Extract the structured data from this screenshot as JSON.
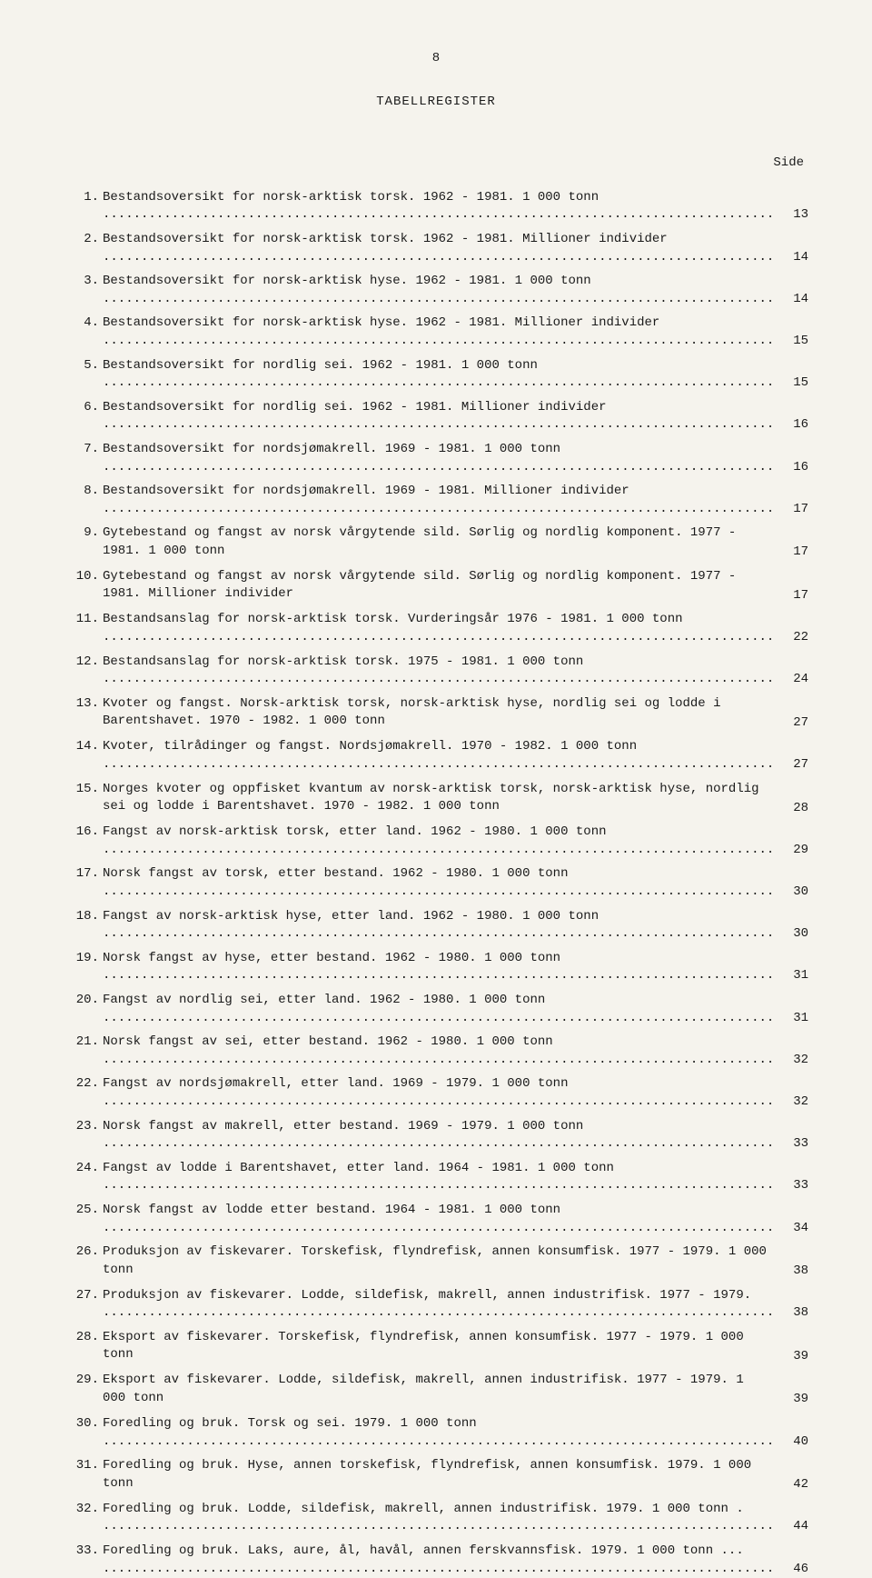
{
  "pageNumber": "8",
  "title": "TABELLREGISTER",
  "sideLabel": "Side",
  "entries": [
    {
      "num": "1.",
      "text": "Bestandsoversikt for norsk-arktisk torsk.  1962 - 1981.  1 000 tonn",
      "page": "13"
    },
    {
      "num": "2.",
      "text": "Bestandsoversikt for norsk-arktisk torsk.  1962 - 1981.  Millioner individer",
      "page": "14"
    },
    {
      "num": "3.",
      "text": "Bestandsoversikt for norsk-arktisk hyse.  1962 - 1981.  1 000 tonn",
      "page": "14"
    },
    {
      "num": "4.",
      "text": "Bestandsoversikt for norsk-arktisk hyse.  1962 - 1981.  Millioner individer",
      "page": "15"
    },
    {
      "num": "5.",
      "text": "Bestandsoversikt for nordlig sei.  1962 - 1981.  1 000 tonn",
      "page": "15"
    },
    {
      "num": "6.",
      "text": "Bestandsoversikt for nordlig sei.  1962 - 1981.  Millioner individer",
      "page": "16"
    },
    {
      "num": "7.",
      "text": "Bestandsoversikt for nordsjømakrell.  1969 - 1981.  1 000 tonn",
      "page": "16"
    },
    {
      "num": "8.",
      "text": "Bestandsoversikt for nordsjømakrell.  1969 - 1981.  Millioner individer",
      "page": "17"
    },
    {
      "num": "9.",
      "text": "Gytebestand og fangst av norsk vårgytende sild.  Sørlig og nordlig komponent.  1977 - 1981.  1 000 tonn",
      "page": "17"
    },
    {
      "num": "10.",
      "text": "Gytebestand og fangst av norsk vårgytende sild.  Sørlig og nordlig komponent.  1977 - 1981.  Millioner individer",
      "page": "17"
    },
    {
      "num": "11.",
      "text": "Bestandsanslag for norsk-arktisk torsk.  Vurderingsår 1976 - 1981.  1 000 tonn",
      "page": "22"
    },
    {
      "num": "12.",
      "text": "Bestandsanslag for norsk-arktisk torsk.  1975 - 1981.  1 000 tonn",
      "page": "24"
    },
    {
      "num": "13.",
      "text": "Kvoter og fangst.  Norsk-arktisk torsk, norsk-arktisk hyse, nordlig sei og lodde i Barentshavet.  1970 - 1982.  1 000 tonn",
      "page": "27"
    },
    {
      "num": "14.",
      "text": "Kvoter, tilrådinger og fangst.  Nordsjømakrell.  1970 - 1982.  1 000 tonn",
      "page": "27"
    },
    {
      "num": "15.",
      "text": "Norges kvoter og oppfisket kvantum av norsk-arktisk torsk, norsk-arktisk hyse, nordlig sei og lodde i Barentshavet.  1970 - 1982.  1 000 tonn",
      "page": "28"
    },
    {
      "num": "16.",
      "text": "Fangst av norsk-arktisk torsk, etter land.  1962 - 1980.  1 000 tonn",
      "page": "29"
    },
    {
      "num": "17.",
      "text": "Norsk fangst av torsk, etter bestand.  1962 - 1980.  1 000 tonn",
      "page": "30"
    },
    {
      "num": "18.",
      "text": "Fangst av norsk-arktisk hyse, etter land.  1962 - 1980.  1 000 tonn",
      "page": "30"
    },
    {
      "num": "19.",
      "text": "Norsk fangst av hyse, etter bestand.  1962 - 1980.  1 000 tonn",
      "page": "31"
    },
    {
      "num": "20.",
      "text": "Fangst av nordlig sei, etter land.  1962 - 1980.  1 000 tonn",
      "page": "31"
    },
    {
      "num": "21.",
      "text": "Norsk fangst av sei, etter bestand.  1962 - 1980.  1 000 tonn",
      "page": "32"
    },
    {
      "num": "22.",
      "text": "Fangst av nordsjømakrell, etter land.  1969 - 1979.  1 000 tonn",
      "page": "32"
    },
    {
      "num": "23.",
      "text": "Norsk fangst av makrell, etter bestand.  1969 - 1979.  1 000 tonn",
      "page": "33"
    },
    {
      "num": "24.",
      "text": "Fangst av lodde i Barentshavet, etter land.  1964 - 1981.  1 000 tonn",
      "page": "33"
    },
    {
      "num": "25.",
      "text": "Norsk fangst av lodde etter bestand.  1964 - 1981.  1 000 tonn",
      "page": "34"
    },
    {
      "num": "26.",
      "text": "Produksjon av fiskevarer.  Torskefisk, flyndrefisk, annen konsumfisk.  1977 - 1979. 1 000 tonn",
      "page": "38"
    },
    {
      "num": "27.",
      "text": "Produksjon av fiskevarer.  Lodde, sildefisk, makrell, annen industrifisk.  1977 - 1979.",
      "page": "38"
    },
    {
      "num": "28.",
      "text": "Eksport av fiskevarer.  Torskefisk, flyndrefisk, annen konsumfisk.  1977 - 1979. 1 000 tonn",
      "page": "39"
    },
    {
      "num": "29.",
      "text": "Eksport av fiskevarer.  Lodde, sildefisk, makrell, annen industrifisk.  1977 - 1979. 1 000 tonn",
      "page": "39"
    },
    {
      "num": "30.",
      "text": "Foredling og bruk.  Torsk og sei.  1979.  1 000 tonn",
      "page": "40"
    },
    {
      "num": "31.",
      "text": "Foredling og bruk.  Hyse, annen torskefisk, flyndrefisk, annen konsumfisk.  1979. 1 000 tonn",
      "page": "42"
    },
    {
      "num": "32.",
      "text": "Foredling og bruk.  Lodde, sildefisk, makrell, annen industrifisk.  1979.  1 000 tonn .",
      "page": "44"
    },
    {
      "num": "33.",
      "text": "Foredling og bruk.  Laks, aure, ål, havål, annen ferskvannsfisk.  1979.  1 000 tonn ...",
      "page": "46"
    }
  ],
  "style": {
    "background": "#f5f3ed",
    "textColor": "#1a1a1a",
    "fontFamily": "Courier New",
    "fontSize": 14,
    "pageWidth": 960,
    "pageHeight": 1477
  }
}
